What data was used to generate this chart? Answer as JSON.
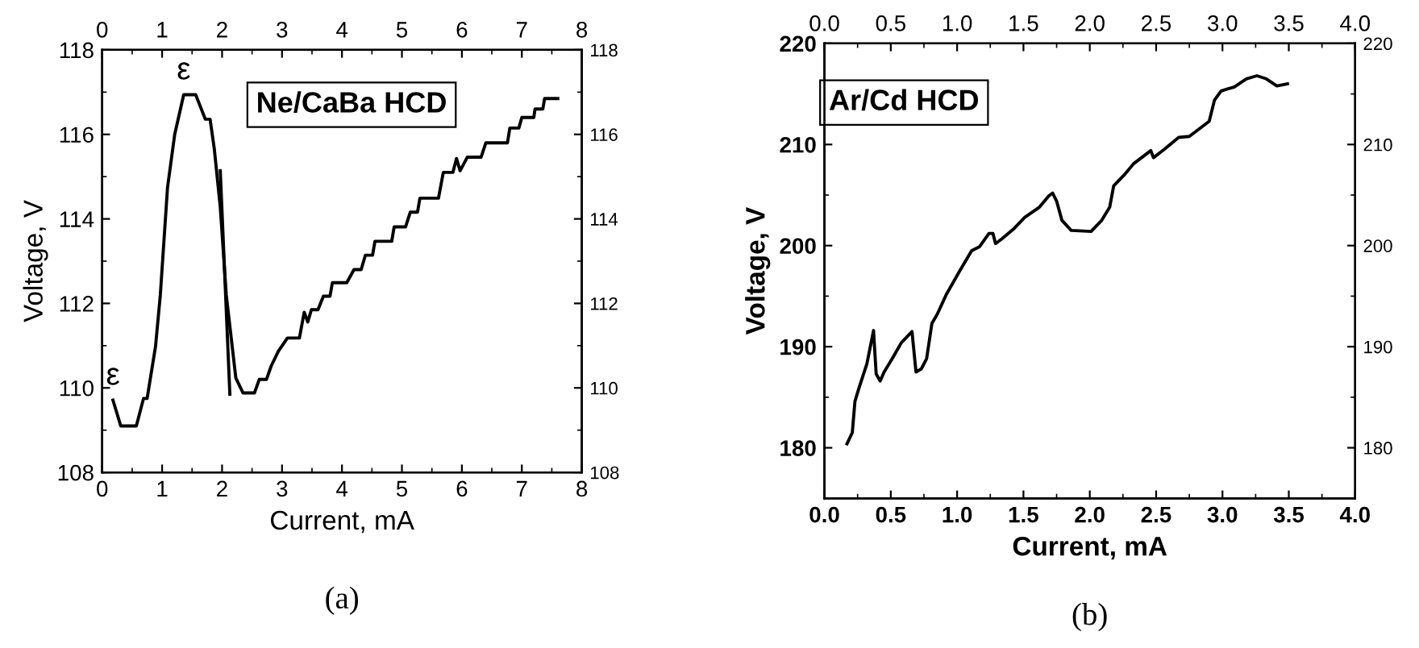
{
  "chart_data": [
    {
      "type": "line",
      "xlabel": "Current, mA",
      "ylabel": "Voltage, V",
      "xlim": [
        0,
        8
      ],
      "xticks": [
        0,
        1,
        2,
        3,
        4,
        5,
        6,
        7,
        8
      ],
      "x2lim": [
        0,
        8
      ],
      "x2ticks": [
        0,
        1,
        2,
        3,
        4,
        5,
        6,
        7,
        8
      ],
      "ylim": [
        108,
        118
      ],
      "yticks": [
        108,
        110,
        112,
        114,
        116,
        118
      ],
      "y2lim": [
        108,
        118
      ],
      "y2ticks": [
        108,
        110,
        112,
        114,
        116,
        118
      ],
      "grid": false,
      "marker": "none",
      "line_style": "solid",
      "series": [
        {
          "color": "#000000",
          "x": [
            0.18,
            0.31,
            0.57,
            0.69,
            0.75,
            0.89,
            0.97,
            1.09,
            1.21,
            1.36,
            1.56,
            1.72,
            1.8,
            1.87,
            1.97,
            2.07,
            2.23,
            2.35,
            2.54,
            2.62,
            2.74,
            2.82,
            2.94,
            3.09,
            3.29,
            3.37,
            3.43,
            3.49,
            3.6,
            3.69,
            3.8,
            3.84,
            4.08,
            4.2,
            4.32,
            4.39,
            4.51,
            4.55,
            4.83,
            4.87,
            5.06,
            5.14,
            5.26,
            5.3,
            5.61,
            5.69,
            5.85,
            5.91,
            5.97,
            6.09,
            6.32,
            6.4,
            6.76,
            6.8,
            6.95,
            7.0,
            7.05,
            7.2,
            7.22,
            7.35,
            7.38,
            7.6
          ],
          "values": [
            109.71,
            109.1,
            109.1,
            109.75,
            109.75,
            110.98,
            112.2,
            114.74,
            116.0,
            116.94,
            116.94,
            116.36,
            116.36,
            115.66,
            114.28,
            112.2,
            110.23,
            109.88,
            109.88,
            110.2,
            110.2,
            110.52,
            110.87,
            111.18,
            111.18,
            111.79,
            111.56,
            111.85,
            111.85,
            112.17,
            112.17,
            112.49,
            112.49,
            112.8,
            112.8,
            113.14,
            113.14,
            113.47,
            113.47,
            113.81,
            113.81,
            114.16,
            114.16,
            114.49,
            114.49,
            115.1,
            115.1,
            115.43,
            115.14,
            115.46,
            115.46,
            115.8,
            115.8,
            116.15,
            116.15,
            116.4,
            116.4,
            116.4,
            116.6,
            116.6,
            116.85,
            116.85
          ]
        },
        {
          "color": "#000000",
          "x": [
            1.97,
            2.13
          ],
          "values": [
            115.14,
            109.85
          ]
        }
      ],
      "annotations": [
        "Ne/CaBa HCD",
        "(a)",
        {
          "text": "ε",
          "x": 1.36,
          "y": 116.94
        },
        {
          "text": "ε",
          "x": 0.18,
          "y": 109.71
        }
      ]
    },
    {
      "type": "line",
      "xlabel": "Current, mA",
      "ylabel": "Voltage, V",
      "xlim": [
        0,
        4
      ],
      "xticks": [
        {
          "value": 0,
          "label": "0.0"
        },
        {
          "value": 0.5,
          "label": "0.5"
        },
        {
          "value": 1,
          "label": "1.0"
        },
        {
          "value": 1.5,
          "label": "1.5"
        },
        {
          "value": 2,
          "label": "2.0"
        },
        {
          "value": 2.5,
          "label": "2.5"
        },
        {
          "value": 3,
          "label": "3.0"
        },
        {
          "value": 3.5,
          "label": "3.5"
        },
        {
          "value": 4,
          "label": "4.0"
        }
      ],
      "x2lim": [
        0,
        4
      ],
      "x2ticks": [
        {
          "value": 0,
          "label": "0.0"
        },
        {
          "value": 0.5,
          "label": "0.5"
        },
        {
          "value": 1,
          "label": "1.0"
        },
        {
          "value": 1.5,
          "label": "1.5"
        },
        {
          "value": 2,
          "label": "2.0"
        },
        {
          "value": 2.5,
          "label": "2.5"
        },
        {
          "value": 3,
          "label": "3.0"
        },
        {
          "value": 3.5,
          "label": "3.5"
        },
        {
          "value": 4,
          "label": "4.0"
        }
      ],
      "ylim": [
        175,
        220
      ],
      "yticks": [
        180,
        190,
        200,
        210,
        220
      ],
      "y2lim": [
        175,
        220
      ],
      "y2ticks": [
        180,
        190,
        200,
        210,
        220
      ],
      "grid": false,
      "marker": "none",
      "line_style": "solid",
      "series": [
        {
          "color": "#000000",
          "x": [
            0.17,
            0.21,
            0.23,
            0.26,
            0.32,
            0.37,
            0.39,
            0.42,
            0.45,
            0.51,
            0.58,
            0.66,
            0.69,
            0.73,
            0.77,
            0.81,
            0.85,
            0.92,
            1.02,
            1.11,
            1.17,
            1.24,
            1.27,
            1.29,
            1.34,
            1.43,
            1.51,
            1.62,
            1.69,
            1.72,
            1.75,
            1.79,
            1.86,
            2.01,
            2.09,
            2.15,
            2.18,
            2.26,
            2.33,
            2.43,
            2.46,
            2.48,
            2.56,
            2.67,
            2.75,
            2.9,
            2.94,
            2.99,
            3.09,
            3.18,
            3.26,
            3.33,
            3.41,
            3.49
          ],
          "values": [
            180.4,
            181.5,
            184.6,
            185.9,
            188.3,
            191.6,
            187.3,
            186.6,
            187.5,
            188.8,
            190.4,
            191.5,
            187.5,
            187.8,
            188.8,
            192.3,
            193.2,
            195.2,
            197.5,
            199.5,
            199.9,
            201.2,
            201.2,
            200.2,
            200.7,
            201.7,
            202.8,
            203.8,
            204.9,
            205.2,
            204.4,
            202.5,
            201.5,
            201.4,
            202.5,
            203.8,
            205.9,
            207.0,
            208.1,
            209.1,
            209.4,
            208.7,
            209.5,
            210.7,
            210.8,
            212.3,
            214.4,
            215.3,
            215.7,
            216.5,
            216.8,
            216.5,
            215.8,
            216.0
          ]
        }
      ],
      "annotations": [
        "Ar/Cd HCD",
        "(b)"
      ]
    }
  ]
}
